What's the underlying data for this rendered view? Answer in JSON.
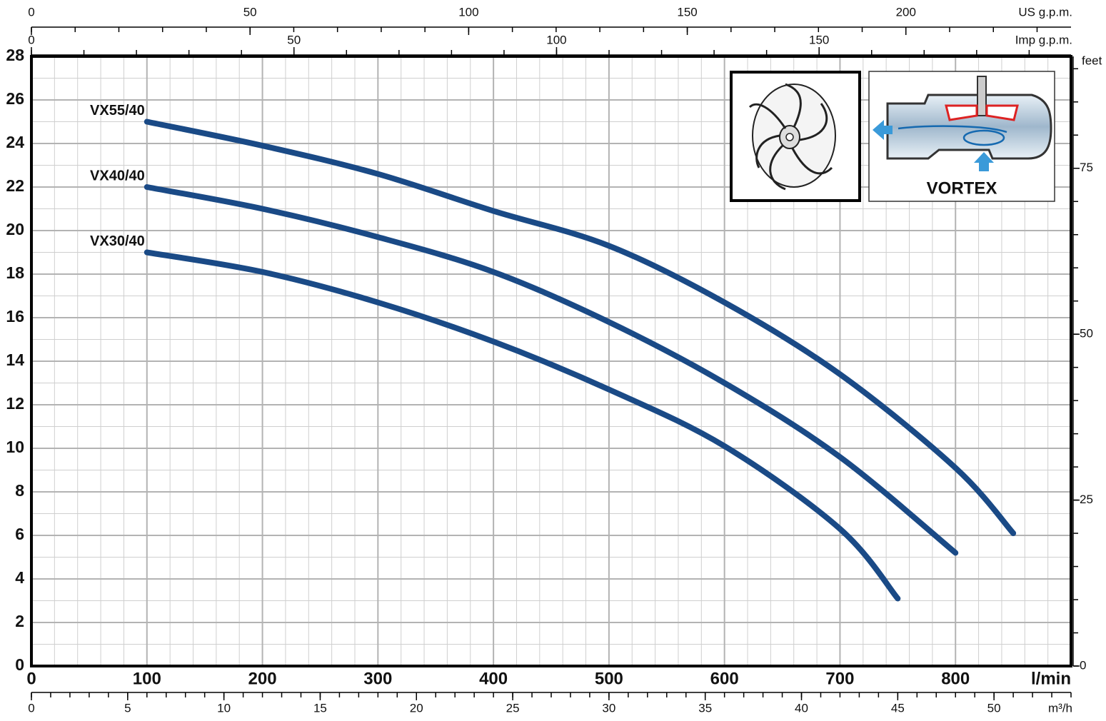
{
  "chart_data": {
    "type": "line",
    "x_label": "l/min",
    "y2_label": "feet",
    "xlim": [
      0,
      900
    ],
    "xticks": [
      0,
      100,
      200,
      300,
      400,
      500,
      600,
      700,
      800
    ],
    "ylim": [
      0,
      28
    ],
    "yticks": [
      0,
      2,
      4,
      6,
      8,
      10,
      12,
      14,
      16,
      18,
      20,
      22,
      24,
      26,
      28
    ],
    "y2lim": [
      0,
      91.86
    ],
    "y2ticks": [
      0,
      25,
      50,
      75
    ],
    "y2_minor_step": 5,
    "secondary_x_axes": [
      {
        "label": "US g.p.m.",
        "position": "top",
        "lim": [
          0,
          237.76
        ],
        "ticks": [
          0,
          50,
          100,
          150,
          200
        ],
        "minor_step": 10
      },
      {
        "label": "Imp g.p.m.",
        "position": "top",
        "lim": [
          0,
          197.97
        ],
        "ticks": [
          0,
          50,
          100,
          150
        ],
        "minor_step": 10
      },
      {
        "label": "m³/h",
        "position": "bottom",
        "lim": [
          0,
          54
        ],
        "ticks": [
          0,
          5,
          10,
          15,
          20,
          25,
          30,
          35,
          40,
          45,
          50
        ],
        "minor_step": 1
      }
    ],
    "grid": true,
    "minor_grid": {
      "x": 20,
      "y": 1
    },
    "series": [
      {
        "name": "VX55/40",
        "color": "#1a4a86",
        "x": [
          100,
          200,
          300,
          400,
          500,
          600,
          700,
          800,
          850
        ],
        "values": [
          25,
          23.9,
          22.6,
          20.9,
          19.3,
          16.7,
          13.4,
          9.1,
          6.1
        ]
      },
      {
        "name": "VX40/40",
        "color": "#1a4a86",
        "x": [
          100,
          200,
          300,
          400,
          500,
          600,
          700,
          800
        ],
        "values": [
          22,
          21,
          19.7,
          18.1,
          15.8,
          13.0,
          9.6,
          5.2
        ]
      },
      {
        "name": "VX30/40",
        "color": "#1a4a86",
        "x": [
          100,
          200,
          300,
          400,
          500,
          600,
          700,
          750
        ],
        "values": [
          19,
          18.1,
          16.7,
          14.9,
          12.7,
          10.1,
          6.3,
          3.1
        ]
      }
    ],
    "annotation": "VORTEX"
  }
}
